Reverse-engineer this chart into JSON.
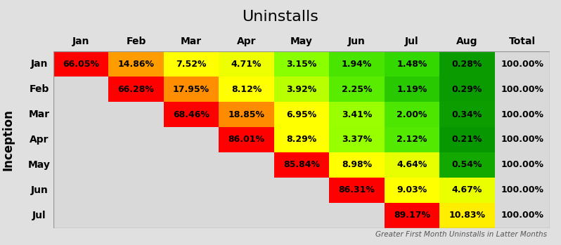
{
  "title": "Uninstalls",
  "subtitle": "Greater First Month Uninstalls in Latter Months",
  "col_labels": [
    "Jan",
    "Feb",
    "Mar",
    "Apr",
    "May",
    "Jun",
    "Jul",
    "Aug",
    "Total"
  ],
  "row_labels": [
    "Jan",
    "Feb",
    "Mar",
    "Apr",
    "May",
    "Jun",
    "Jul"
  ],
  "values": [
    [
      66.05,
      14.86,
      7.52,
      4.71,
      3.15,
      1.94,
      1.48,
      0.28,
      100.0
    ],
    [
      null,
      66.28,
      17.95,
      8.12,
      3.92,
      2.25,
      1.19,
      0.29,
      100.0
    ],
    [
      null,
      null,
      68.46,
      18.85,
      6.95,
      3.41,
      2.0,
      0.34,
      100.0
    ],
    [
      null,
      null,
      null,
      86.01,
      8.29,
      3.37,
      2.12,
      0.21,
      100.0
    ],
    [
      null,
      null,
      null,
      null,
      85.84,
      8.98,
      4.64,
      0.54,
      100.0
    ],
    [
      null,
      null,
      null,
      null,
      null,
      86.31,
      9.03,
      4.67,
      100.0
    ],
    [
      null,
      null,
      null,
      null,
      null,
      null,
      89.17,
      10.83,
      100.0
    ]
  ],
  "bg_color": "#d9d9d9",
  "outer_bg": "#e0e0e0",
  "empty_cell_color": "#ffffff",
  "inception_label": "Inception",
  "title_fontsize": 16,
  "header_fontsize": 10,
  "rowlabel_fontsize": 10,
  "value_fontsize": 9,
  "subtitle_fontsize": 7.5,
  "inception_fontsize": 12,
  "color_thresholds": [
    60,
    15,
    10,
    5,
    2,
    0
  ],
  "colors": [
    "#ff0000",
    "#ff9900",
    "#ffff00",
    "#aaff00",
    "#44cc00",
    "#009900"
  ]
}
